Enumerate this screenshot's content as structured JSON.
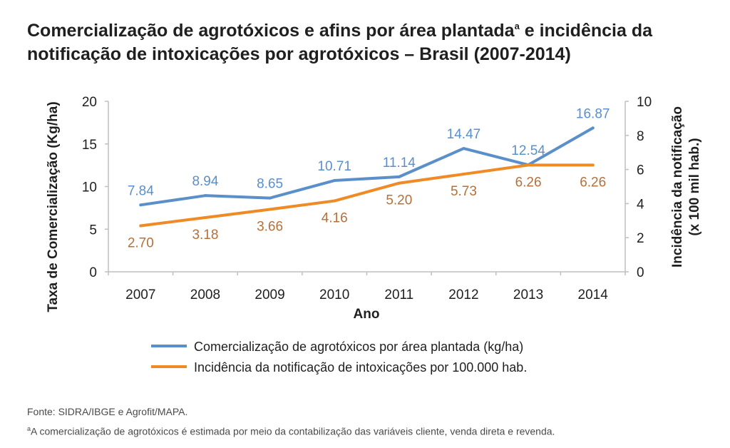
{
  "title": {
    "line1": "Comercialização de agrotóxicos e afins por área plantada",
    "superscript": "a",
    "line1_rest": " e incidência da",
    "line2": "notificação de intoxicações por agrotóxicos – Brasil (2007-2014)"
  },
  "chart_data": {
    "type": "line",
    "xlabel": "Ano",
    "ylabel_left": "Taxa de Comercialização (Kg/ha)",
    "ylabel_right_line1": "Incidência da notificação",
    "ylabel_right_line2": "(x 100 mil hab.)",
    "categories": [
      "2007",
      "2008",
      "2009",
      "2010",
      "2011",
      "2012",
      "2013",
      "2014"
    ],
    "ylim_left": [
      0,
      20
    ],
    "yticks_left": [
      "0",
      "5",
      "10",
      "15",
      "20"
    ],
    "ylim_right": [
      0,
      10
    ],
    "yticks_right": [
      "0",
      "2",
      "4",
      "6",
      "8",
      "10"
    ],
    "series": [
      {
        "name": "Comercialização de agrotóxicos por área plantada (kg/ha)",
        "axis": "left",
        "color": "#5b8fc9",
        "values": [
          7.84,
          8.94,
          8.65,
          10.71,
          11.14,
          14.47,
          12.54,
          16.87
        ],
        "labels": [
          "7.84",
          "8.94",
          "8.65",
          "10.71",
          "11.14",
          "14.47",
          "12.54",
          "16.87"
        ]
      },
      {
        "name": "Incidência da notificação de intoxicações por 100.000 hab.",
        "axis": "right",
        "color": "#f08a24",
        "label_color": "#b5703a",
        "values": [
          2.7,
          3.18,
          3.66,
          4.16,
          5.2,
          5.73,
          6.26,
          6.26
        ],
        "labels": [
          "2.70",
          "3.18",
          "3.66",
          "4.16",
          "5.20",
          "5.73",
          "6.26",
          "6.26"
        ]
      }
    ],
    "legend_position": "bottom",
    "grid": false
  },
  "footer": {
    "source": "Fonte: SIDRA/IBGE e Agrofit/MAPA.",
    "note_superscript": "a",
    "note": "A comercialização de agrotóxicos é estimada por meio da contabilização das variáveis cliente, venda direta e revenda."
  }
}
